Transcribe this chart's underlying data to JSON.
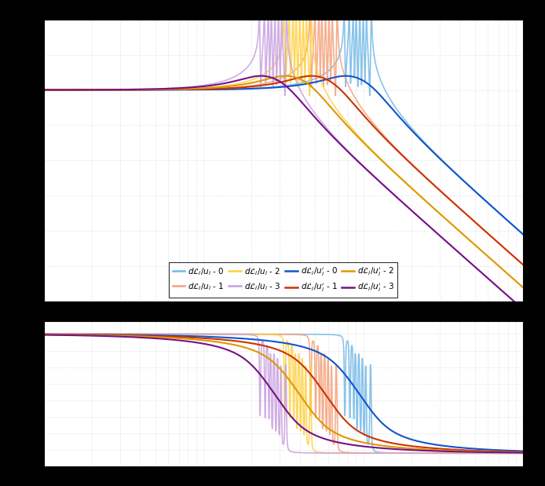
{
  "colors_light": [
    "#74b9e8",
    "#f4a07a",
    "#ffd040",
    "#c8a0e0"
  ],
  "colors_dark": [
    "#1155cc",
    "#cc3300",
    "#dd9900",
    "#771188"
  ],
  "legend_labels_light": [
    "$d\\mathcal{L}_i/u_i$ - 0",
    "$d\\mathcal{L}_i/u_i$ - 1",
    "$d\\mathcal{L}_i/u_i$ - 2",
    "$d\\mathcal{L}_i/u_i$ - 3"
  ],
  "legend_labels_dark": [
    "$d\\mathcal{L}_i/u_i^{\\prime}$ - 0",
    "$d\\mathcal{L}_i/u_i^{\\prime}$ - 1",
    "$d\\mathcal{L}_i/u_i^{\\prime}$ - 2",
    "$d\\mathcal{L}_i/u_i^{\\prime}$ - 3"
  ],
  "fig_bg": "#000000",
  "ax_bg": "#ffffff",
  "grid_color": "#d8d8d8",
  "freq_min": 1,
  "freq_max": 1000,
  "n_points": 5000,
  "fn_vals": [
    95.0,
    58.0,
    40.0,
    28.0
  ],
  "zeta_undamped": 0.005,
  "zeta_damped": 0.3,
  "n_modes": 8,
  "mode_spread": [
    0.8,
    0.86,
    0.91,
    0.95,
    1.0,
    1.05,
    1.1,
    1.18
  ],
  "lw_light": 1.2,
  "lw_dark": 1.5
}
